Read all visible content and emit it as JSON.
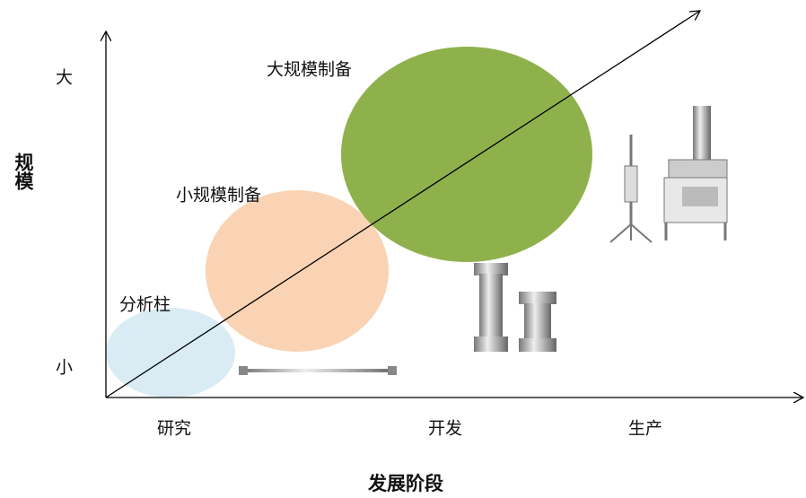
{
  "axes": {
    "y_title": "规模",
    "y_high": "大",
    "y_low": "小",
    "x_title": "发展阶段",
    "x_stages": [
      "研究",
      "开发",
      "生产"
    ]
  },
  "bubbles": [
    {
      "label": "分析柱"
    },
    {
      "label": "小规模制备"
    },
    {
      "label": "大规模制备"
    }
  ]
}
